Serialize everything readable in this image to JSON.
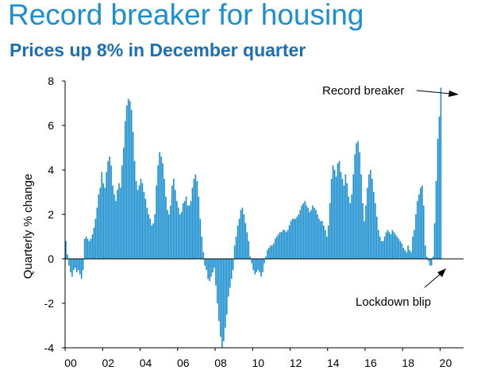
{
  "chart_data": {
    "type": "bar",
    "title": "Record breaker for housing",
    "subtitle": "Prices up 8% in December quarter",
    "xlabel": "",
    "ylabel": "Quarterly % change",
    "ylim": [
      -4,
      8
    ],
    "yticks": [
      "-4",
      "-2",
      "0",
      "2",
      "4",
      "6",
      "8"
    ],
    "xlim": [
      2000,
      2021.25
    ],
    "xticks": [
      {
        "year": 2000,
        "label": "00"
      },
      {
        "year": 2002,
        "label": "02"
      },
      {
        "year": 2004,
        "label": "04"
      },
      {
        "year": 2006,
        "label": "06"
      },
      {
        "year": 2008,
        "label": "08"
      },
      {
        "year": 2010,
        "label": "10"
      },
      {
        "year": 2012,
        "label": "12"
      },
      {
        "year": 2014,
        "label": "14"
      },
      {
        "year": 2016,
        "label": "16"
      },
      {
        "year": 2018,
        "label": "18"
      },
      {
        "year": 2020,
        "label": "20"
      }
    ],
    "bar_color": "#1a8fd0",
    "grid": false,
    "series": [
      {
        "frequency": "monthly (rolling quarterly change)",
        "start": "2000-01",
        "values": [
          0.8,
          0.2,
          -0.3,
          -0.6,
          -0.8,
          -0.5,
          -0.4,
          -0.6,
          -0.5,
          -0.7,
          -0.9,
          -0.5,
          0.9,
          1.0,
          0.9,
          0.8,
          0.9,
          1.1,
          1.4,
          1.8,
          2.3,
          2.9,
          3.2,
          3.9,
          3.4,
          3.2,
          3.9,
          4.4,
          4.6,
          4.2,
          3.3,
          2.9,
          2.6,
          3.1,
          3.4,
          3.2,
          4.2,
          5.0,
          6.2,
          6.9,
          7.2,
          7.1,
          6.7,
          5.7,
          4.4,
          3.5,
          3.1,
          3.3,
          3.6,
          3.4,
          3.0,
          2.7,
          2.3,
          2.0,
          1.8,
          1.5,
          1.6,
          2.0,
          3.3,
          4.2,
          4.8,
          4.6,
          4.3,
          3.6,
          2.8,
          2.2,
          2.0,
          2.4,
          3.3,
          3.6,
          3.1,
          2.6,
          2.3,
          2.0,
          2.1,
          2.5,
          2.6,
          2.8,
          2.4,
          2.4,
          2.6,
          3.2,
          3.6,
          3.8,
          3.5,
          2.8,
          1.8,
          1.0,
          0.3,
          -0.3,
          -0.5,
          -0.9,
          -1.0,
          -0.8,
          -0.6,
          -0.4,
          -1.2,
          -2.0,
          -2.8,
          -3.5,
          -4.0,
          -3.7,
          -3.1,
          -2.5,
          -1.7,
          -1.3,
          -0.9,
          -0.5,
          0.6,
          1.0,
          1.5,
          1.8,
          2.2,
          2.3,
          2.0,
          1.6,
          1.2,
          0.8,
          0.1,
          -0.2,
          -0.5,
          -0.7,
          -0.6,
          -0.5,
          -0.6,
          -0.8,
          -0.6,
          -0.2,
          0.1,
          0.4,
          0.5,
          0.6,
          0.6,
          0.7,
          0.9,
          1.0,
          1.1,
          1.2,
          1.2,
          1.3,
          1.3,
          1.2,
          1.3,
          1.5,
          1.7,
          1.8,
          1.8,
          1.8,
          1.9,
          2.0,
          2.2,
          2.4,
          2.5,
          2.6,
          2.4,
          2.3,
          2.1,
          2.2,
          2.4,
          2.3,
          2.2,
          2.0,
          1.8,
          1.7,
          1.7,
          1.5,
          1.3,
          1.0,
          1.5,
          2.5,
          3.6,
          4.2,
          4.0,
          3.7,
          4.3,
          4.4,
          3.9,
          3.6,
          3.3,
          3.8,
          3.4,
          2.8,
          2.5,
          2.9,
          3.8,
          4.7,
          5.2,
          5.3,
          4.8,
          3.8,
          2.5,
          1.7,
          2.4,
          3.2,
          3.8,
          4.0,
          3.6,
          3.0,
          2.5,
          1.9,
          1.3,
          1.0,
          0.8,
          0.8,
          1.0,
          1.2,
          1.3,
          1.2,
          1.1,
          1.3,
          1.2,
          1.1,
          1.0,
          0.9,
          0.8,
          0.7,
          0.5,
          0.4,
          0.3,
          0.6,
          0.4,
          0.3,
          1.0,
          1.3,
          2.0,
          2.6,
          2.9,
          3.2,
          3.3,
          2.4,
          0.6,
          0.1,
          -0.1,
          -0.3,
          -0.3,
          0.1,
          1.6,
          3.5,
          5.4,
          6.4,
          7.7
        ]
      }
    ]
  },
  "annotations": {
    "record_label": "Record breaker",
    "blip_label": "Lockdown blip"
  }
}
